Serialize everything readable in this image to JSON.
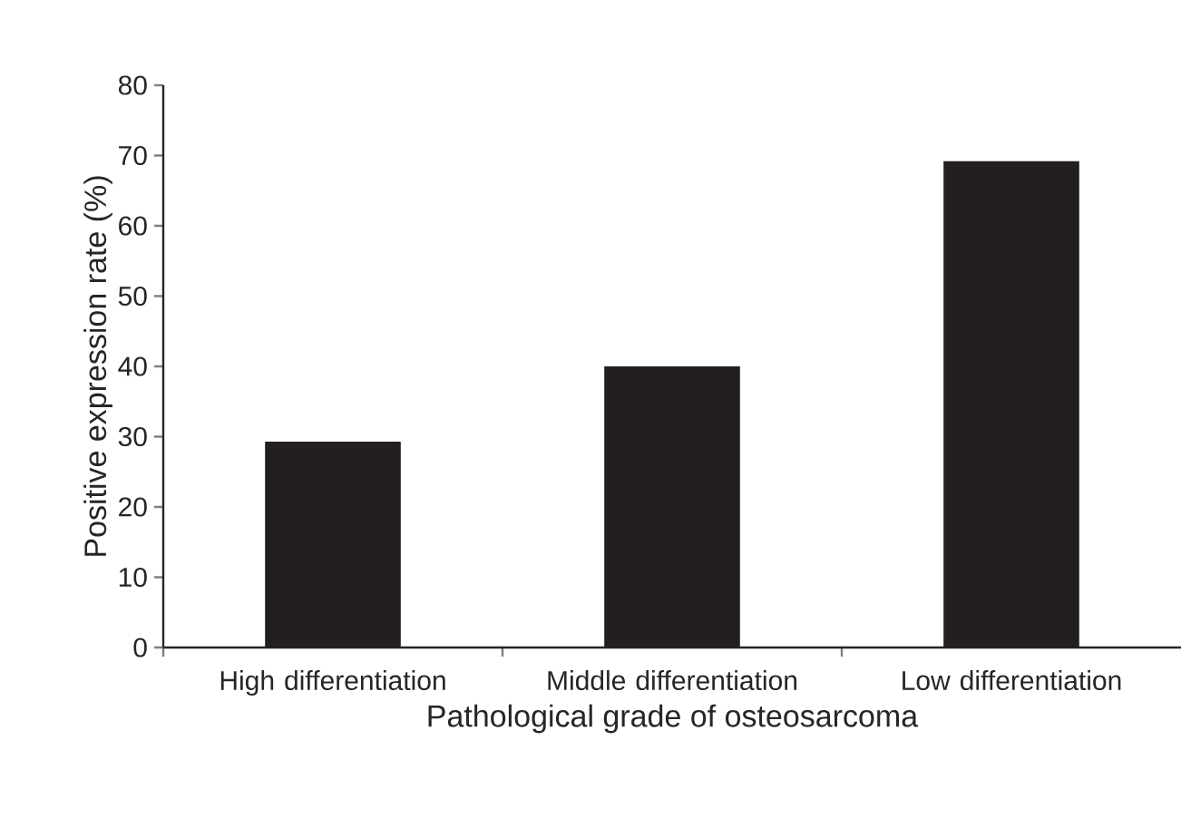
{
  "chart_data": {
    "type": "bar",
    "xlabel": "Pathological grade of osteosarcoma",
    "ylabel": "Positive expression rate (%)",
    "categories": [
      "High differentiation",
      "Middle differentiation",
      "Low differentiation"
    ],
    "values": [
      29.3,
      40.0,
      69.2
    ],
    "color": "#231f20",
    "ylim": [
      0,
      80
    ],
    "yticks": [
      0,
      10,
      20,
      30,
      40,
      50,
      60,
      70,
      80
    ]
  }
}
